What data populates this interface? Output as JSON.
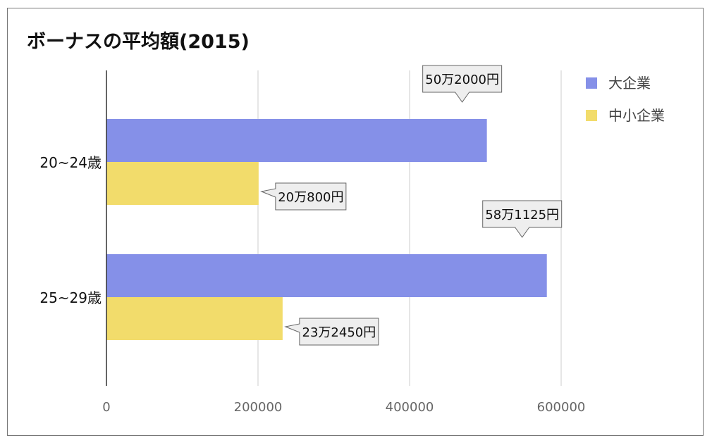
{
  "chart_data": {
    "type": "bar",
    "orientation": "horizontal",
    "title": "ボーナスの平均額(2015)",
    "categories": [
      "20~24歳",
      "25~29歳"
    ],
    "series": [
      {
        "name": "大企業",
        "values": [
          502000,
          581125
        ],
        "color": "#8590e8"
      },
      {
        "name": "中小企業",
        "values": [
          200800,
          232450
        ],
        "color": "#f2dc6b"
      }
    ],
    "data_labels": [
      [
        "50万2000円",
        "58万1125円"
      ],
      [
        "20万800円",
        "23万2450円"
      ]
    ],
    "xlim": [
      0,
      700000
    ],
    "xticks": [
      0,
      200000,
      400000,
      600000
    ],
    "xtick_labels": [
      "0",
      "200000",
      "400000",
      "600000"
    ],
    "grid": true,
    "legend_position": "top-right"
  }
}
